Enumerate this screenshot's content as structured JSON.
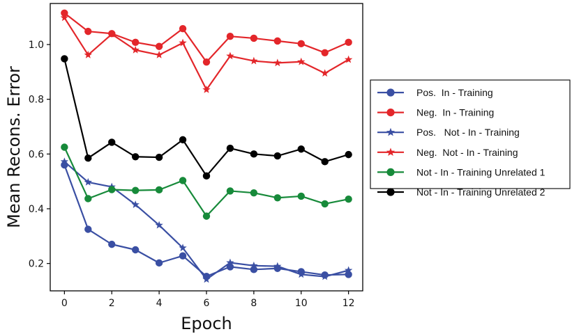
{
  "chart_data": {
    "type": "line",
    "title": "",
    "xlabel": "Epoch",
    "ylabel": "Mean Recons. Error",
    "xlim": [
      -0.6,
      12.6
    ],
    "ylim": [
      0.1,
      1.15
    ],
    "xticks": [
      0,
      2,
      4,
      6,
      8,
      10,
      12
    ],
    "yticks": [
      0.2,
      0.4,
      0.6,
      0.8,
      1.0
    ],
    "ytick_labels": [
      "0.2",
      "0.4",
      "0.6",
      "0.8",
      "1.0"
    ],
    "grid": false,
    "legend_position": "right, outside plot",
    "x": [
      0,
      1,
      2,
      3,
      4,
      5,
      6,
      7,
      8,
      9,
      10,
      11,
      12
    ],
    "series": [
      {
        "name": "Pos.  In - Training",
        "color": "#3a4fa3",
        "marker": "circle",
        "values": [
          0.56,
          0.325,
          0.27,
          0.25,
          0.202,
          0.228,
          0.153,
          0.188,
          0.178,
          0.182,
          0.17,
          0.158,
          0.16
        ]
      },
      {
        "name": "Neg.  In - Training",
        "color": "#e3262a",
        "marker": "circle",
        "values": [
          1.115,
          1.048,
          1.04,
          1.008,
          0.993,
          1.058,
          0.936,
          1.03,
          1.023,
          1.013,
          1.003,
          0.97,
          1.008
        ]
      },
      {
        "name": "Pos.   Not - In - Training",
        "color": "#3a4fa3",
        "marker": "star",
        "values": [
          0.572,
          0.497,
          0.48,
          0.415,
          0.34,
          0.257,
          0.142,
          0.203,
          0.192,
          0.19,
          0.16,
          0.152,
          0.175
        ]
      },
      {
        "name": "Neg.  Not - In - Training",
        "color": "#e3262a",
        "marker": "star",
        "values": [
          1.098,
          0.962,
          1.038,
          0.98,
          0.962,
          1.006,
          0.835,
          0.958,
          0.94,
          0.933,
          0.937,
          0.895,
          0.945
        ]
      },
      {
        "name": "Not - In - Training Unrelated 1",
        "color": "#178a3a",
        "marker": "circle",
        "values": [
          0.625,
          0.437,
          0.47,
          0.467,
          0.469,
          0.503,
          0.373,
          0.465,
          0.458,
          0.44,
          0.446,
          0.418,
          0.435
        ]
      },
      {
        "name": "Not - In - Training Unrelated 2",
        "color": "#000000",
        "marker": "circle",
        "values": [
          0.948,
          0.585,
          0.643,
          0.59,
          0.588,
          0.652,
          0.52,
          0.621,
          0.6,
          0.593,
          0.618,
          0.572,
          0.598
        ]
      }
    ]
  }
}
